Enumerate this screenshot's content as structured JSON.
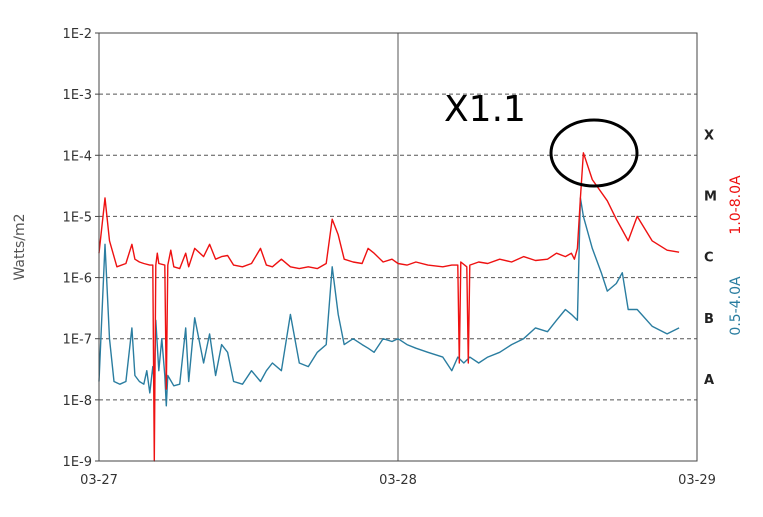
{
  "chart_data": {
    "type": "line",
    "title": "",
    "xlabel": "",
    "ylabel": "Watts/m2",
    "y_scale": "log",
    "ylim": [
      1e-09,
      0.01
    ],
    "xlim": [
      0,
      2
    ],
    "y_tick_labels": [
      "1E-9",
      "1E-8",
      "1E-7",
      "1E-6",
      "1E-5",
      "1E-4",
      "1E-3",
      "1E-2"
    ],
    "x_tick_labels": [
      {
        "x": 0,
        "label": "03-27"
      },
      {
        "x": 1,
        "label": "03-28"
      },
      {
        "x": 2,
        "label": "03-29"
      }
    ],
    "flare_classes": [
      {
        "label": "A",
        "value": 1e-08
      },
      {
        "label": "B",
        "value": 1e-07
      },
      {
        "label": "C",
        "value": 1e-06
      },
      {
        "label": "M",
        "value": 1e-05
      },
      {
        "label": "X",
        "value": 0.0001
      }
    ],
    "annotation": {
      "text": "X1.1",
      "x": 1.62,
      "value": 0.00011
    },
    "series": [
      {
        "name": "1.0-8.0A",
        "color": "#ee1111",
        "x": [
          0.0,
          0.02,
          0.035,
          0.06,
          0.09,
          0.11,
          0.12,
          0.135,
          0.15,
          0.17,
          0.18,
          0.185,
          0.19,
          0.195,
          0.2,
          0.22,
          0.225,
          0.23,
          0.24,
          0.25,
          0.27,
          0.29,
          0.3,
          0.32,
          0.35,
          0.37,
          0.39,
          0.41,
          0.43,
          0.45,
          0.48,
          0.51,
          0.54,
          0.56,
          0.58,
          0.61,
          0.64,
          0.67,
          0.7,
          0.73,
          0.76,
          0.78,
          0.8,
          0.82,
          0.85,
          0.88,
          0.9,
          0.92,
          0.95,
          0.98,
          1.0,
          1.03,
          1.06,
          1.1,
          1.15,
          1.18,
          1.2,
          1.205,
          1.21,
          1.23,
          1.235,
          1.24,
          1.27,
          1.3,
          1.34,
          1.38,
          1.42,
          1.46,
          1.5,
          1.53,
          1.56,
          1.58,
          1.59,
          1.6,
          1.61,
          1.62,
          1.65,
          1.7,
          1.73,
          1.75,
          1.77,
          1.8,
          1.85,
          1.9,
          1.94
        ],
        "values": [
          2.5e-06,
          2e-05,
          4e-06,
          1.5e-06,
          1.7e-06,
          3.5e-06,
          2e-06,
          1.8e-06,
          1.7e-06,
          1.6e-06,
          1.6e-06,
          1e-09,
          1.6e-06,
          2.5e-06,
          1.7e-06,
          1.6e-06,
          1.5e-08,
          1.6e-06,
          2.8e-06,
          1.5e-06,
          1.4e-06,
          2.5e-06,
          1.5e-06,
          3e-06,
          2.2e-06,
          3.5e-06,
          2e-06,
          2.2e-06,
          2.3e-06,
          1.6e-06,
          1.5e-06,
          1.7e-06,
          3e-06,
          1.6e-06,
          1.5e-06,
          2e-06,
          1.5e-06,
          1.4e-06,
          1.5e-06,
          1.4e-06,
          1.7e-06,
          9e-06,
          5e-06,
          2e-06,
          1.8e-06,
          1.7e-06,
          3e-06,
          2.5e-06,
          1.8e-06,
          2e-06,
          1.7e-06,
          1.6e-06,
          1.8e-06,
          1.6e-06,
          1.5e-06,
          1.6e-06,
          1.6e-06,
          4e-08,
          1.8e-06,
          1.5e-06,
          4e-08,
          1.6e-06,
          1.8e-06,
          1.7e-06,
          2e-06,
          1.8e-06,
          2.2e-06,
          1.9e-06,
          2e-06,
          2.5e-06,
          2.2e-06,
          2.5e-06,
          2e-06,
          3e-06,
          2e-05,
          0.00011,
          4e-05,
          1.8e-05,
          9e-06,
          6e-06,
          4e-06,
          1e-05,
          4e-06,
          2.8e-06,
          2.6e-06
        ]
      },
      {
        "name": "0.5-4.0A",
        "color": "#2a7da0",
        "x": [
          0.0,
          0.02,
          0.035,
          0.05,
          0.07,
          0.09,
          0.11,
          0.12,
          0.135,
          0.15,
          0.16,
          0.17,
          0.18,
          0.185,
          0.19,
          0.2,
          0.21,
          0.22,
          0.225,
          0.23,
          0.25,
          0.27,
          0.29,
          0.3,
          0.32,
          0.35,
          0.37,
          0.39,
          0.41,
          0.43,
          0.45,
          0.48,
          0.51,
          0.54,
          0.56,
          0.58,
          0.61,
          0.64,
          0.67,
          0.7,
          0.73,
          0.76,
          0.78,
          0.8,
          0.82,
          0.85,
          0.88,
          0.9,
          0.92,
          0.95,
          0.98,
          1.0,
          1.03,
          1.06,
          1.1,
          1.15,
          1.18,
          1.2,
          1.22,
          1.24,
          1.27,
          1.3,
          1.34,
          1.38,
          1.42,
          1.46,
          1.5,
          1.53,
          1.56,
          1.58,
          1.6,
          1.61,
          1.62,
          1.65,
          1.68,
          1.7,
          1.73,
          1.75,
          1.77,
          1.8,
          1.85,
          1.9,
          1.94
        ],
        "values": [
          2e-08,
          3.5e-06,
          1e-07,
          2e-08,
          1.8e-08,
          2e-08,
          1.5e-07,
          2.5e-08,
          2e-08,
          1.8e-08,
          3e-08,
          1.3e-08,
          3.5e-08,
          2e-08,
          2e-07,
          3e-08,
          1e-07,
          2.5e-08,
          8e-09,
          2.5e-08,
          1.7e-08,
          1.8e-08,
          1.5e-07,
          2e-08,
          2.2e-07,
          4e-08,
          1.2e-07,
          2.5e-08,
          8e-08,
          6e-08,
          2e-08,
          1.8e-08,
          3e-08,
          2e-08,
          3e-08,
          4e-08,
          3e-08,
          2.5e-07,
          4e-08,
          3.5e-08,
          6e-08,
          8e-08,
          1.5e-06,
          2.5e-07,
          8e-08,
          1e-07,
          8e-08,
          7e-08,
          6e-08,
          1e-07,
          9e-08,
          1e-07,
          8e-08,
          7e-08,
          6e-08,
          5e-08,
          3e-08,
          5e-08,
          4e-08,
          5e-08,
          4e-08,
          5e-08,
          6e-08,
          8e-08,
          1e-07,
          1.5e-07,
          1.3e-07,
          2e-07,
          3e-07,
          2.5e-07,
          2e-07,
          2e-05,
          1e-05,
          3e-06,
          1.2e-06,
          6e-07,
          8e-07,
          1.2e-06,
          3e-07,
          3e-07,
          1.6e-07,
          1.2e-07,
          1.5e-07
        ]
      }
    ]
  }
}
